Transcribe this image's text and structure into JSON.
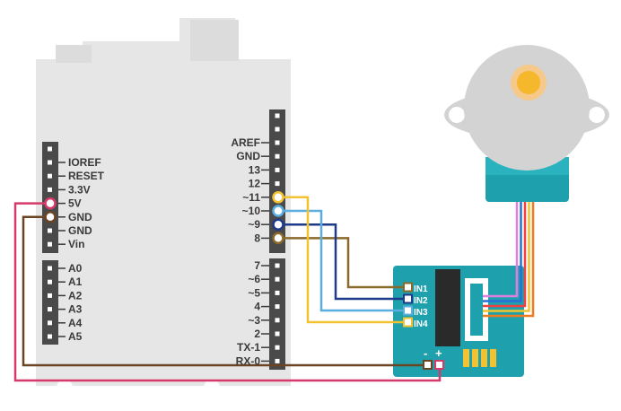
{
  "board": {
    "power_pins": [
      "IOREF",
      "RESET",
      "3.3V",
      "5V",
      "GND",
      "GND",
      "Vin"
    ],
    "analog_pins": [
      "A0",
      "A1",
      "A2",
      "A3",
      "A4",
      "A5"
    ],
    "digital_top_pins": [
      "AREF",
      "GND",
      "13",
      "12",
      "~11",
      "~10",
      "~9",
      "8"
    ],
    "digital_bottom_pins": [
      "7",
      "~6",
      "~5",
      "4",
      "~3",
      "2",
      "TX-1",
      "RX-0"
    ]
  },
  "driver": {
    "inputs": [
      "IN1",
      "IN2",
      "IN3",
      "IN4"
    ],
    "power_minus": "-",
    "power_plus": "+"
  },
  "colors": {
    "board": "#e6e6e6",
    "header": "#4a4a4a",
    "pcb": "#1fa1ad",
    "motor": "#d3d3d3",
    "motor_neck": "#1fa1ad",
    "shaft": "#f5b72b",
    "wire_5v": "#d63a6a",
    "wire_gnd": "#6b4423",
    "wire_in1": "#8a6a2a",
    "wire_in2": "#1e3a8a",
    "wire_in3": "#5aaee0",
    "wire_in4": "#f2c230"
  }
}
